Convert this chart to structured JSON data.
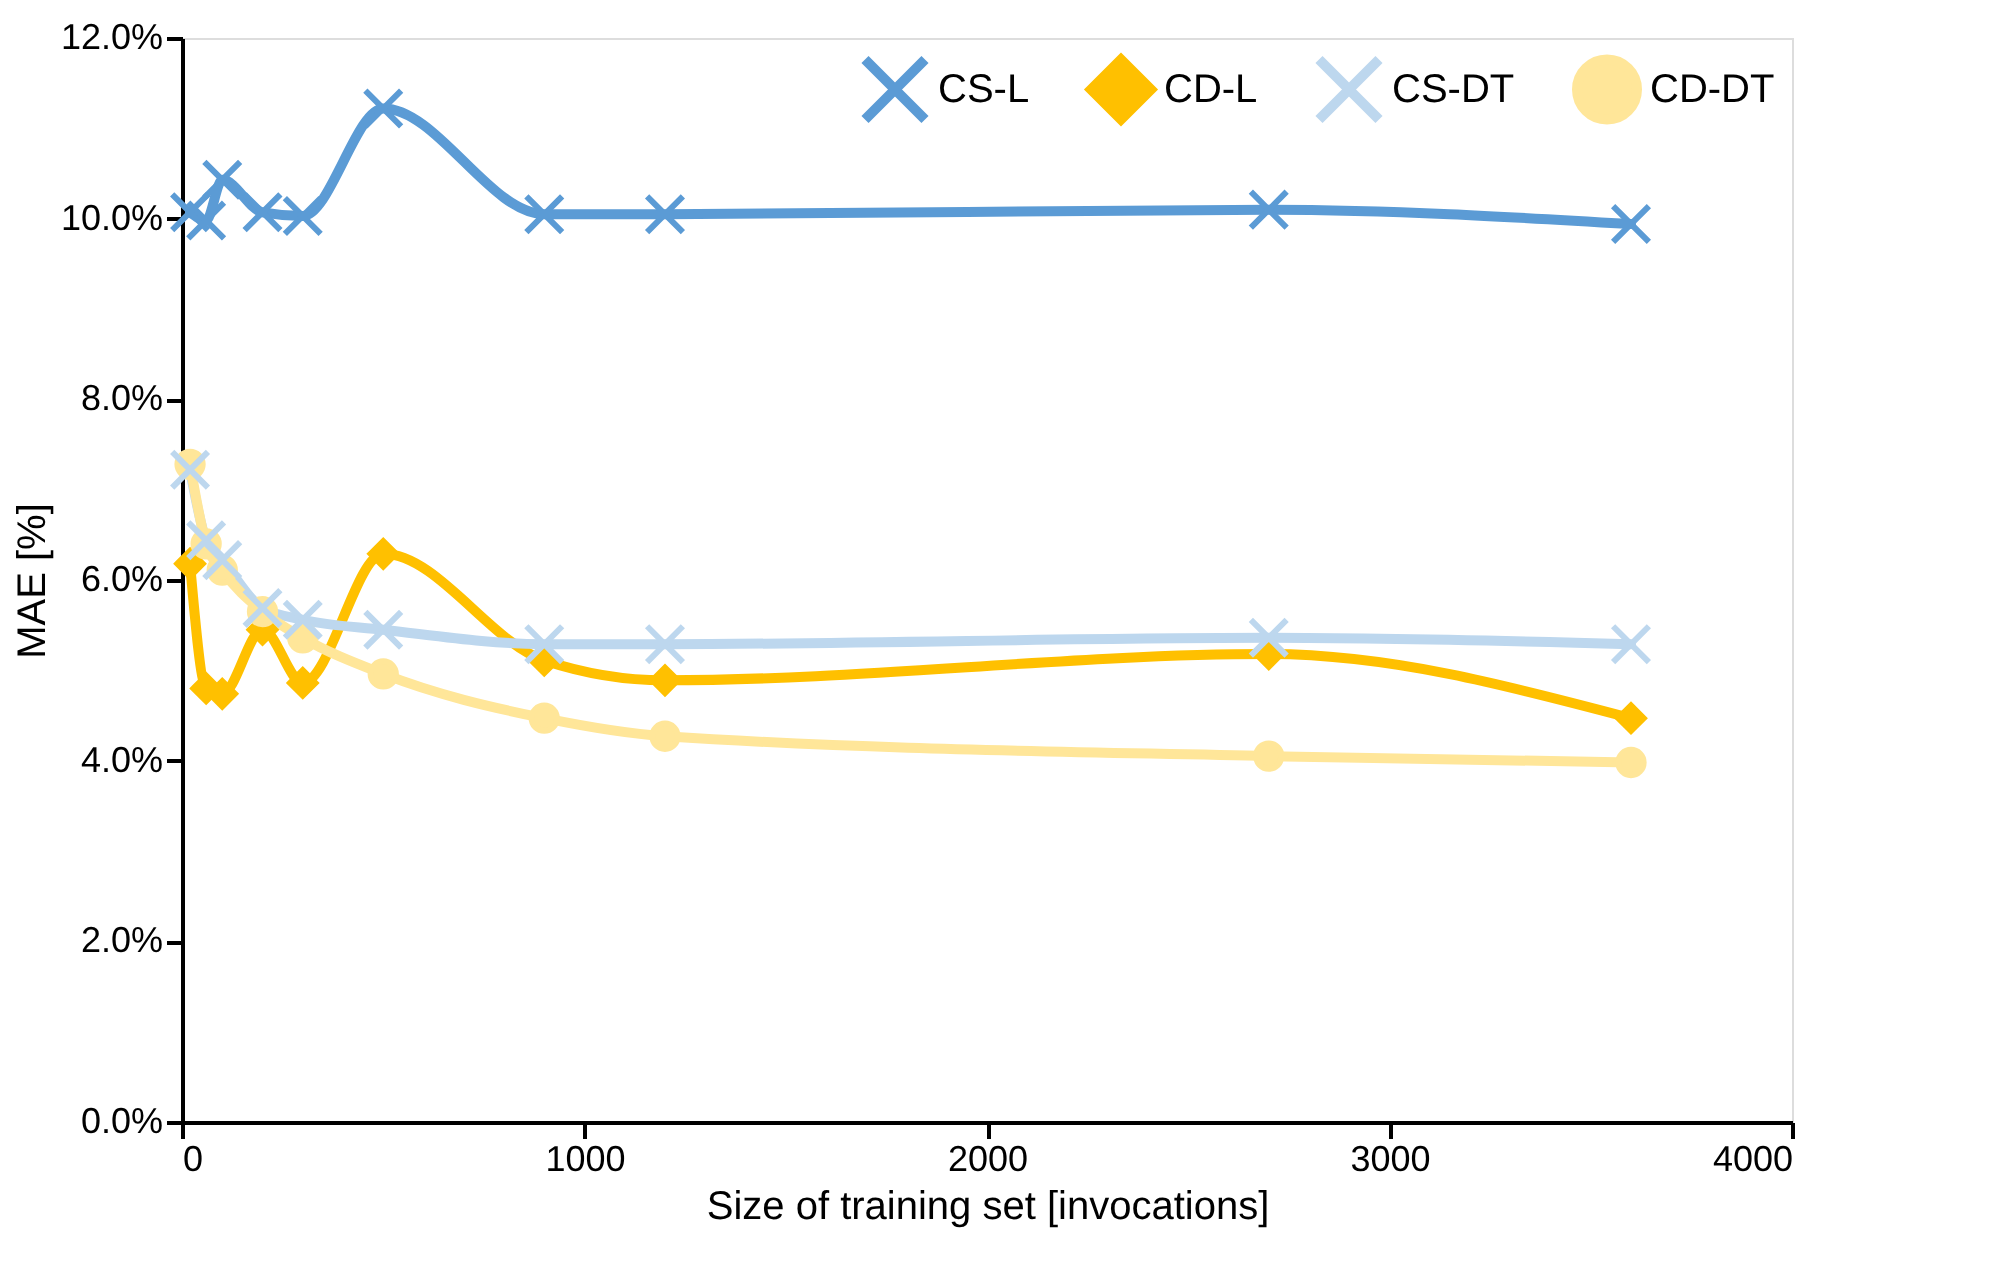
{
  "chart_data": {
    "type": "line",
    "xlabel": "Size of training set [invocations]",
    "ylabel": "MAE [%]",
    "x": [
      20,
      60,
      100,
      200,
      300,
      500,
      900,
      1200,
      2700,
      3600
    ],
    "series": [
      {
        "name": "CS-L",
        "color": "#5b9bd5",
        "marker": "cross",
        "values": [
          10.07,
          9.98,
          10.43,
          10.07,
          10.03,
          11.22,
          10.05,
          10.05,
          10.1,
          9.94
        ]
      },
      {
        "name": "CD-L",
        "color": "#ffc000",
        "marker": "diamond",
        "values": [
          6.18,
          4.8,
          4.74,
          5.45,
          4.86,
          6.29,
          5.11,
          4.89,
          5.18,
          4.47
        ]
      },
      {
        "name": "CS-DT",
        "color": "#bdd7ee",
        "marker": "cross",
        "values": [
          7.22,
          6.44,
          6.22,
          5.69,
          5.56,
          5.45,
          5.29,
          5.29,
          5.36,
          5.29
        ]
      },
      {
        "name": "CD-DT",
        "color": "#ffe699",
        "marker": "circle",
        "values": [
          7.28,
          6.4,
          6.11,
          5.65,
          5.36,
          4.96,
          4.47,
          4.27,
          4.05,
          3.98
        ]
      }
    ],
    "xlim": [
      0,
      4000
    ],
    "xticks": [
      0,
      1000,
      2000,
      3000,
      4000
    ],
    "ylim": [
      0,
      12
    ],
    "yticks": [
      {
        "value": 0,
        "label": "0.0%"
      },
      {
        "value": 2,
        "label": "2.0%"
      },
      {
        "value": 4,
        "label": "4.0%"
      },
      {
        "value": 6,
        "label": "6.0%"
      },
      {
        "value": 8,
        "label": "8.0%"
      },
      {
        "value": 10,
        "label": "10.0%"
      },
      {
        "value": 12,
        "label": "12.0%"
      }
    ],
    "grid": false,
    "legend": "top right",
    "line_style": "solid"
  }
}
